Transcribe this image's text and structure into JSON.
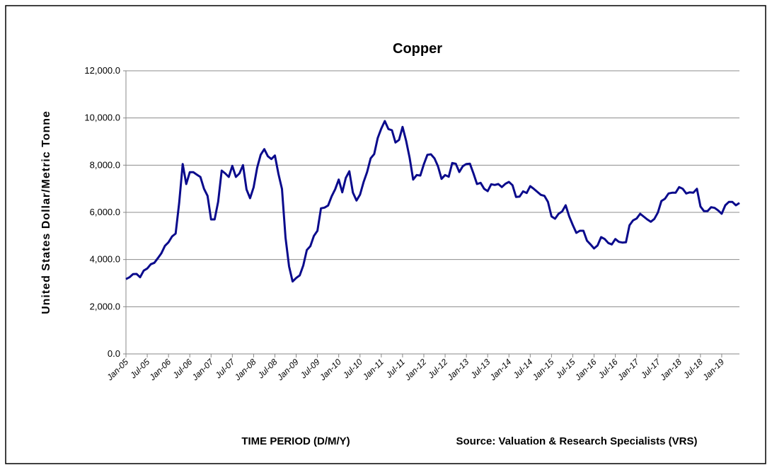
{
  "chart_data": {
    "type": "line",
    "title": "Copper",
    "y_label": "United States Dollar/Metric Tonne",
    "x_label": "TIME PERIOD (D/M/Y)",
    "source": "Source: Valuation & Research Specialists (VRS)",
    "categories": [
      "Jan-05",
      null,
      null,
      null,
      null,
      null,
      "Jul-05",
      null,
      null,
      null,
      null,
      null,
      "Jan-06",
      null,
      null,
      null,
      null,
      null,
      "Jul-06",
      null,
      null,
      null,
      null,
      null,
      "Jan-07",
      null,
      null,
      null,
      null,
      null,
      "Jul-07",
      null,
      null,
      null,
      null,
      null,
      "Jan-08",
      null,
      null,
      null,
      null,
      null,
      "Jul-08",
      null,
      null,
      null,
      null,
      null,
      "Jan-09",
      null,
      null,
      null,
      null,
      null,
      "Jul-09",
      null,
      null,
      null,
      null,
      null,
      "Jan-10",
      null,
      null,
      null,
      null,
      null,
      "Jul-10",
      null,
      null,
      null,
      null,
      null,
      "Jan-11",
      null,
      null,
      null,
      null,
      null,
      "Jul-11",
      null,
      null,
      null,
      null,
      null,
      "Jan-12",
      null,
      null,
      null,
      null,
      null,
      "Jul-12",
      null,
      null,
      null,
      null,
      null,
      "Jan-13",
      null,
      null,
      null,
      null,
      null,
      "Jul-13",
      null,
      null,
      null,
      null,
      null,
      "Jan-14",
      null,
      null,
      null,
      null,
      null,
      "Jul-14",
      null,
      null,
      null,
      null,
      null,
      "Jan-15",
      null,
      null,
      null,
      null,
      null,
      "Jul-15",
      null,
      null,
      null,
      null,
      null,
      "Jan-16",
      null,
      null,
      null,
      null,
      null,
      "Jul-16",
      null,
      null,
      null,
      null,
      null,
      "Jan-17",
      null,
      null,
      null,
      null,
      null,
      "Jul-17",
      null,
      null,
      null,
      null,
      null,
      "Jan-18",
      null,
      null,
      null,
      null,
      null,
      "Jul-18",
      null,
      null,
      null,
      null,
      null,
      "Jan-19",
      null,
      null,
      null,
      null,
      null
    ],
    "series": [
      {
        "name": "Copper",
        "color": "#0a0a8c",
        "values": [
          3170,
          3250,
          3380,
          3390,
          3250,
          3530,
          3620,
          3800,
          3860,
          4060,
          4270,
          4580,
          4730,
          4980,
          5100,
          6400,
          8050,
          7200,
          7700,
          7700,
          7600,
          7500,
          7000,
          6700,
          5700,
          5700,
          6450,
          7770,
          7650,
          7500,
          7970,
          7500,
          7650,
          8000,
          6970,
          6600,
          7060,
          7890,
          8440,
          8680,
          8380,
          8260,
          8410,
          7630,
          6990,
          4930,
          3710,
          3070,
          3220,
          3330,
          3750,
          4400,
          4570,
          5000,
          5220,
          6170,
          6200,
          6290,
          6680,
          6980,
          7390,
          6850,
          7460,
          7740,
          6840,
          6500,
          6750,
          7280,
          7710,
          8290,
          8470,
          9150,
          9550,
          9870,
          9530,
          9480,
          8960,
          9070,
          9620,
          9040,
          8310,
          7390,
          7580,
          7560,
          8040,
          8440,
          8460,
          8290,
          7950,
          7420,
          7580,
          7510,
          8090,
          8060,
          7710,
          7960,
          8050,
          8060,
          7650,
          7200,
          7250,
          7000,
          6900,
          7190,
          7160,
          7200,
          7070,
          7210,
          7290,
          7150,
          6650,
          6670,
          6890,
          6820,
          7110,
          7000,
          6870,
          6740,
          6700,
          6440,
          5830,
          5730,
          5940,
          6040,
          6300,
          5830,
          5460,
          5130,
          5220,
          5220,
          4800,
          4640,
          4470,
          4600,
          4950,
          4870,
          4700,
          4640,
          4870,
          4750,
          4720,
          4730,
          5450,
          5660,
          5740,
          5940,
          5820,
          5700,
          5600,
          5720,
          5990,
          6480,
          6580,
          6800,
          6830,
          6830,
          7070,
          7000,
          6800,
          6850,
          6830,
          7000,
          6250,
          6050,
          6050,
          6220,
          6190,
          6080,
          5940,
          6300,
          6440,
          6440,
          6300,
          6400
        ]
      }
    ],
    "ylim": [
      0,
      12000
    ],
    "yticks": [
      {
        "value": 0,
        "label": "0.0"
      },
      {
        "value": 2000,
        "label": "2,000.0"
      },
      {
        "value": 4000,
        "label": "4,000.0"
      },
      {
        "value": 6000,
        "label": "6,000.0"
      },
      {
        "value": 8000,
        "label": "8,000.0"
      },
      {
        "value": 10000,
        "label": "10,000.0"
      },
      {
        "value": 12000,
        "label": "12,000.0"
      }
    ],
    "grid": true
  }
}
